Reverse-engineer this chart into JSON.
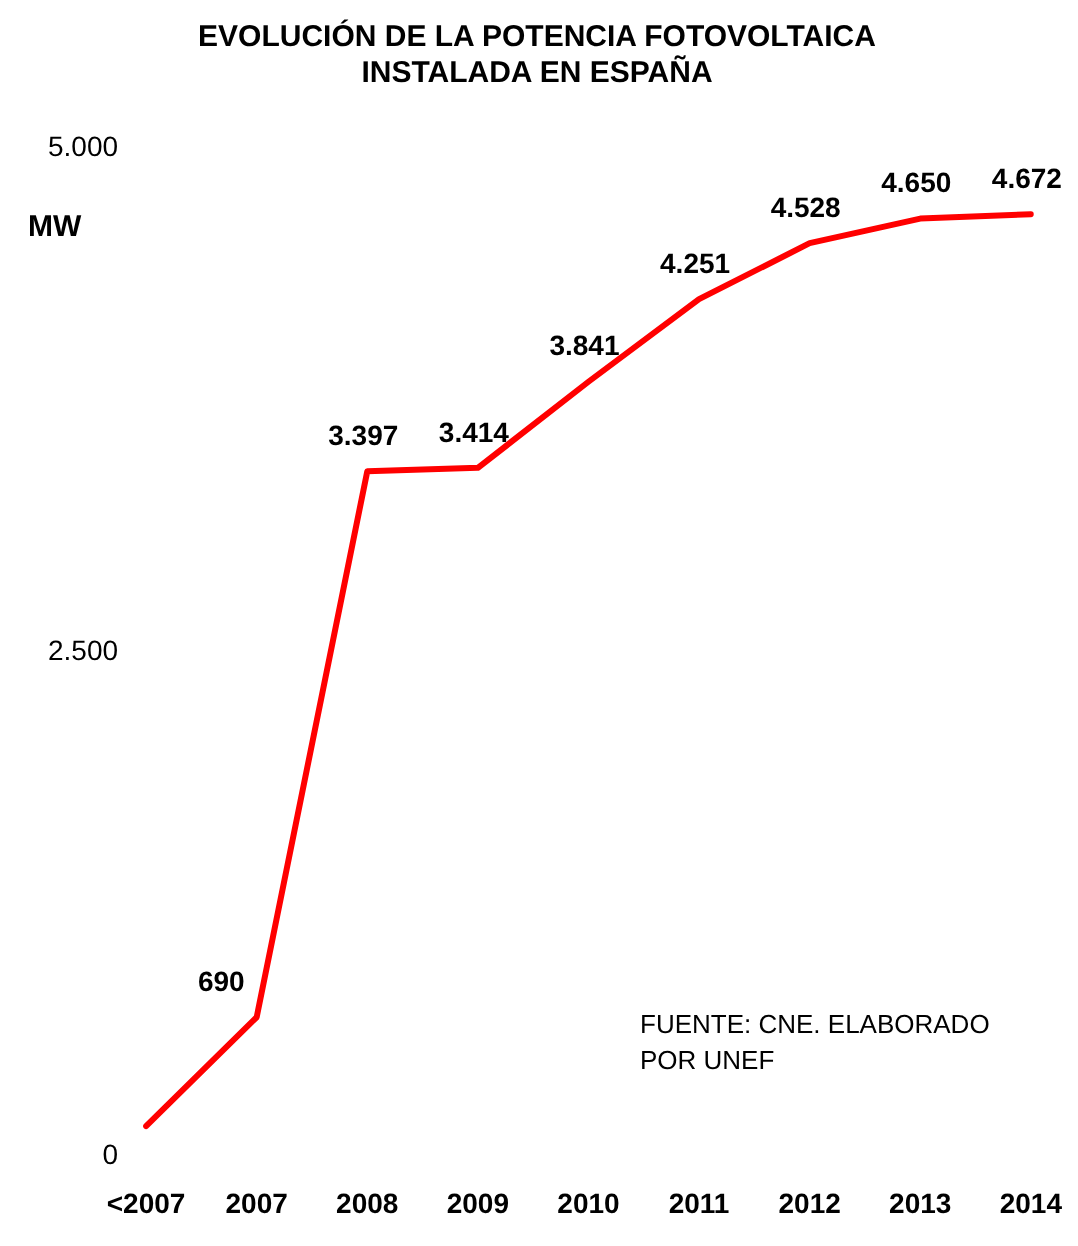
{
  "chart_data": {
    "type": "line",
    "title": "EVOLUCIÓN DE LA POTENCIA FOTOVOLTAICA\nINSTALADA EN ESPAÑA",
    "ylabel": "MW",
    "categories": [
      "<2007",
      "2007",
      "2008",
      "2009",
      "2010",
      "2011",
      "2012",
      "2013",
      "2014"
    ],
    "series": [
      {
        "color": "#ff0000",
        "values": [
          150,
          690,
          3397,
          3414,
          3841,
          4251,
          4528,
          4650,
          4672
        ],
        "value_labels": [
          null,
          "690",
          "3.397",
          "3.414",
          "3.841",
          "4.251",
          "4.528",
          "4.650",
          "4.672"
        ]
      }
    ],
    "ylim": [
      0,
      5000
    ],
    "yticks": [
      {
        "value": 0,
        "label": "0"
      },
      {
        "value": 2500,
        "label": "2.500"
      },
      {
        "value": 5000,
        "label": "5.000"
      }
    ],
    "grid": false,
    "legend": false,
    "marker": "none",
    "line_style": "solid",
    "annotations": [
      "FUENTE: CNE. ELABORADO POR UNEF"
    ]
  }
}
